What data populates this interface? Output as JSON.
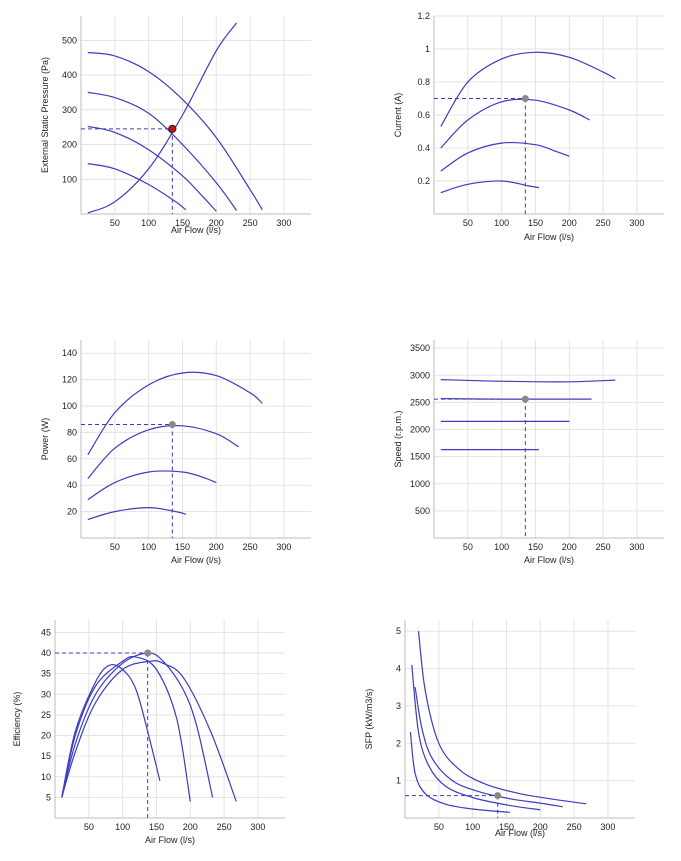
{
  "chart_data": [
    {
      "type": "line",
      "xlabel": "Air Flow (l/s)",
      "ylabel": "External Static Pressure (Pa)",
      "xlim": [
        0,
        340
      ],
      "ylim": [
        0,
        570
      ],
      "xticks": [
        50,
        100,
        150,
        200,
        250,
        300
      ],
      "yticks": [
        100,
        200,
        300,
        400,
        500
      ],
      "series": [
        {
          "x": [
            10,
            50,
            100,
            150,
            200,
            250,
            268
          ],
          "y": [
            465,
            455,
            410,
            330,
            220,
            70,
            12
          ]
        },
        {
          "x": [
            10,
            50,
            100,
            150,
            200,
            230
          ],
          "y": [
            350,
            335,
            290,
            200,
            90,
            10
          ]
        },
        {
          "x": [
            10,
            50,
            100,
            150,
            180,
            200
          ],
          "y": [
            252,
            235,
            185,
            110,
            50,
            8
          ]
        },
        {
          "x": [
            10,
            50,
            100,
            140,
            155
          ],
          "y": [
            145,
            130,
            85,
            35,
            12
          ]
        },
        {
          "x": [
            10,
            50,
            100,
            150,
            200,
            230
          ],
          "y": [
            3,
            35,
            130,
            285,
            470,
            550
          ]
        }
      ],
      "operating_point": {
        "x": 135,
        "y": 245
      },
      "point_color": "#cc1111"
    },
    {
      "type": "line",
      "xlabel": "Air Flow (l/s)",
      "ylabel": "Current (A)",
      "xlim": [
        0,
        340
      ],
      "ylim": [
        0,
        1.2
      ],
      "xticks": [
        50,
        100,
        150,
        200,
        250,
        300
      ],
      "yticks": [
        0.2,
        0.4,
        0.6,
        0.8,
        1,
        1.2
      ],
      "series": [
        {
          "x": [
            10,
            50,
            100,
            150,
            200,
            250,
            268
          ],
          "y": [
            0.53,
            0.8,
            0.94,
            0.98,
            0.95,
            0.86,
            0.82
          ]
        },
        {
          "x": [
            10,
            50,
            100,
            150,
            200,
            230
          ],
          "y": [
            0.4,
            0.57,
            0.68,
            0.69,
            0.63,
            0.57
          ]
        },
        {
          "x": [
            10,
            50,
            100,
            150,
            180,
            200
          ],
          "y": [
            0.26,
            0.37,
            0.43,
            0.42,
            0.38,
            0.35
          ]
        },
        {
          "x": [
            10,
            50,
            100,
            140,
            155
          ],
          "y": [
            0.13,
            0.18,
            0.2,
            0.17,
            0.16
          ]
        }
      ],
      "operating_point": {
        "x": 135,
        "y": 0.7
      },
      "point_color": "#888888"
    },
    {
      "type": "line",
      "xlabel": "Air Flow (l/s)",
      "ylabel": "Power (W)",
      "xlim": [
        0,
        340
      ],
      "ylim": [
        0,
        150
      ],
      "xticks": [
        50,
        100,
        150,
        200,
        250,
        300
      ],
      "yticks": [
        20,
        40,
        60,
        80,
        100,
        120,
        140
      ],
      "series": [
        {
          "x": [
            10,
            50,
            100,
            150,
            200,
            250,
            268
          ],
          "y": [
            63,
            95,
            116,
            125,
            123,
            110,
            102
          ]
        },
        {
          "x": [
            10,
            50,
            100,
            150,
            200,
            233
          ],
          "y": [
            45,
            68,
            82,
            85,
            79,
            69
          ]
        },
        {
          "x": [
            10,
            50,
            100,
            150,
            180,
            200
          ],
          "y": [
            29,
            42,
            50,
            50,
            46,
            42
          ]
        },
        {
          "x": [
            10,
            50,
            100,
            140,
            155
          ],
          "y": [
            14,
            20,
            23,
            20,
            18
          ]
        }
      ],
      "operating_point": {
        "x": 135,
        "y": 86
      },
      "point_color": "#888888"
    },
    {
      "type": "line",
      "xlabel": "Air Flow (l/s)",
      "ylabel": "Speed (r.p.m.)",
      "xlim": [
        0,
        340
      ],
      "ylim": [
        0,
        3650
      ],
      "xticks": [
        50,
        100,
        150,
        200,
        250,
        300
      ],
      "yticks": [
        500,
        1000,
        1500,
        2000,
        2500,
        3000,
        3500
      ],
      "series": [
        {
          "x": [
            10,
            100,
            200,
            268
          ],
          "y": [
            2920,
            2890,
            2880,
            2910
          ]
        },
        {
          "x": [
            10,
            100,
            200,
            233
          ],
          "y": [
            2570,
            2560,
            2560,
            2560
          ]
        },
        {
          "x": [
            10,
            100,
            200
          ],
          "y": [
            2150,
            2150,
            2150
          ]
        },
        {
          "x": [
            10,
            100,
            155
          ],
          "y": [
            1630,
            1630,
            1630
          ]
        }
      ],
      "operating_point": {
        "x": 135,
        "y": 2560
      },
      "point_color": "#888888"
    },
    {
      "type": "line",
      "xlabel": "Air Flow (l/s)",
      "ylabel": "Efficiency (%)",
      "xlim": [
        0,
        340
      ],
      "ylim": [
        0,
        48
      ],
      "xticks": [
        50,
        100,
        150,
        200,
        250,
        300
      ],
      "yticks": [
        5,
        10,
        15,
        20,
        25,
        30,
        35,
        40,
        45
      ],
      "series": [
        {
          "x": [
            10,
            30,
            60,
            100,
            140,
            160,
            190,
            230,
            268
          ],
          "y": [
            5,
            16,
            28,
            36,
            38,
            37.5,
            34,
            21,
            4
          ]
        },
        {
          "x": [
            10,
            30,
            60,
            100,
            137,
            160,
            190,
            210,
            233
          ],
          "y": [
            5,
            18,
            30,
            37.5,
            40,
            38,
            31,
            22,
            5
          ]
        },
        {
          "x": [
            10,
            30,
            60,
            100,
            120,
            150,
            180,
            200
          ],
          "y": [
            5,
            20,
            32,
            38,
            39,
            36,
            24,
            4
          ]
        },
        {
          "x": [
            10,
            30,
            60,
            80,
            100,
            120,
            140,
            155
          ],
          "y": [
            5,
            21,
            33,
            37,
            36,
            31,
            19,
            9
          ]
        }
      ],
      "operating_point": {
        "x": 137,
        "y": 40
      },
      "point_color": "#888888"
    },
    {
      "type": "line",
      "xlabel": "Air Flow (l/s)",
      "ylabel": "SFP (kW/m3/s)",
      "xlim": [
        0,
        340
      ],
      "ylim": [
        0,
        5.3
      ],
      "xticks": [
        50,
        100,
        150,
        200,
        250,
        300
      ],
      "yticks": [
        1,
        2,
        3,
        4,
        5
      ],
      "series": [
        {
          "x": [
            20,
            30,
            50,
            80,
            120,
            170,
            220,
            268
          ],
          "y": [
            5.0,
            3.4,
            2.0,
            1.3,
            0.9,
            0.65,
            0.5,
            0.38
          ]
        },
        {
          "x": [
            15,
            25,
            40,
            70,
            110,
            160,
            200,
            233
          ],
          "y": [
            3.5,
            2.4,
            1.6,
            1.0,
            0.7,
            0.5,
            0.4,
            0.3
          ]
        },
        {
          "x": [
            10,
            20,
            35,
            60,
            100,
            150,
            200
          ],
          "y": [
            4.1,
            2.3,
            1.4,
            0.85,
            0.55,
            0.35,
            0.22
          ]
        },
        {
          "x": [
            8,
            15,
            30,
            60,
            100,
            155
          ],
          "y": [
            2.3,
            1.2,
            0.65,
            0.37,
            0.24,
            0.15
          ]
        }
      ],
      "operating_point": {
        "x": 137,
        "y": 0.6
      },
      "point_color": "#888888"
    }
  ]
}
